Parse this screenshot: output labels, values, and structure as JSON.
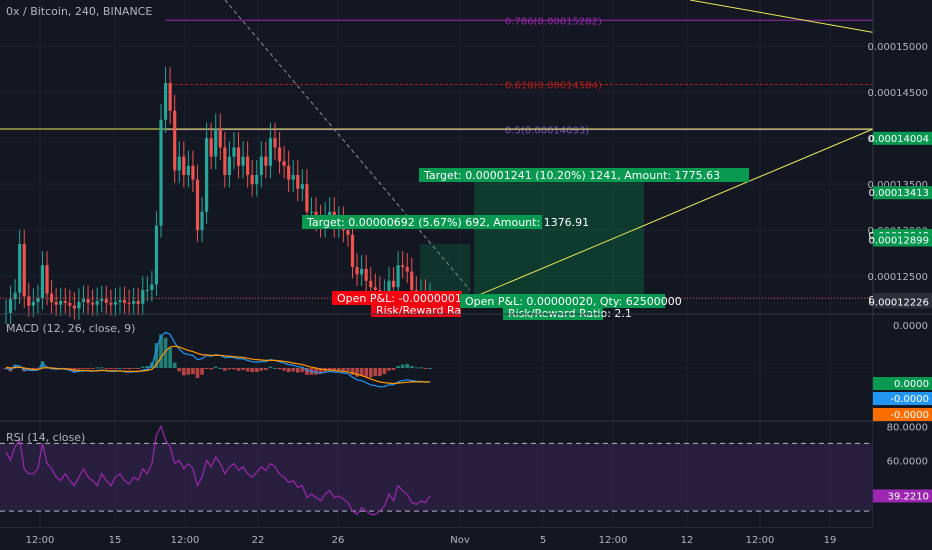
{
  "header": {
    "title": "0x / Bitcoin, 240, BINANCE"
  },
  "colors": {
    "background": "#131722",
    "grid": "#1e222d",
    "up": "#26a69a",
    "down": "#ef5350",
    "fib_0786": "#9c27b0",
    "fib_0618": "#b71c1c",
    "fib_05": "#7e57c2",
    "trend_line": "#e8e856",
    "target_green": "#089950",
    "loss_red": "#f7000f",
    "macd_line": "#2196f3",
    "signal_line": "#ff9800",
    "rsi_line": "#9c27b0",
    "rsi_band": "#3b2554"
  },
  "chart_data": [
    {
      "type": "candlestick",
      "pair": "0x / Bitcoin",
      "interval": "240",
      "exchange": "BINANCE",
      "x_tick_labels": [
        "12:00",
        "15",
        "12:00",
        "22",
        "26",
        "Nov",
        "5",
        "12:00",
        "12",
        "12:00",
        "19"
      ],
      "price_axis_labels": [
        "0.00015000",
        "0.00014500",
        "0.00014000",
        "0.00013500",
        "0.00013000",
        "0.00012500"
      ],
      "price_badges": [
        {
          "value": "0.00014004",
          "color": "#089950"
        },
        {
          "value": "0.00013413",
          "color": "#089950"
        },
        {
          "value": "0.00012948",
          "color": "#089950"
        },
        {
          "value": "0.00012899",
          "color": "#089950"
        },
        {
          "value": "0.00012254",
          "color": "#2a2e39"
        },
        {
          "value": "0.00012226",
          "color": "#2a2e39"
        }
      ],
      "ylim": [
        0.000121,
        0.0001535
      ],
      "closes": [
        0.000121,
        0.0001225,
        0.0001232,
        0.0001285,
        0.0001228,
        0.0001218,
        0.0001222,
        0.0001226,
        0.0001262,
        0.0001231,
        0.0001222,
        0.0001219,
        0.0001223,
        0.0001221,
        0.0001218,
        0.0001215,
        0.0001222,
        0.0001225,
        0.0001221,
        0.0001219,
        0.0001223,
        0.0001225,
        0.0001221,
        0.0001219,
        0.0001222,
        0.0001224,
        0.0001221,
        0.000122,
        0.0001223,
        0.000122,
        0.0001235,
        0.0001235,
        0.0001241,
        0.0001305,
        0.000142,
        0.000146,
        0.000143,
        0.0001365,
        0.000138,
        0.000136,
        0.000137,
        0.0001355,
        0.00013,
        0.000132,
        0.00014,
        0.000138,
        0.000141,
        0.000139,
        0.000136,
        0.000138,
        0.000139,
        0.000137,
        0.000138,
        0.000136,
        0.000135,
        0.000136,
        0.000138,
        0.000137,
        0.00014,
        0.000139,
        0.0001375,
        0.000137,
        0.0001355,
        0.000136,
        0.0001345,
        0.000135,
        0.000132,
        0.000132,
        0.0001312,
        0.0001305,
        0.0001315,
        0.000132,
        0.0001305,
        0.000131,
        0.00013,
        0.0001295,
        0.000126,
        0.0001252,
        0.0001258,
        0.0001245,
        0.0001238,
        0.0001235,
        0.0001228,
        0.0001232,
        0.0001245,
        0.0001238,
        0.0001262,
        0.000126,
        0.0001255,
        0.0001235,
        0.0001228,
        0.0001232,
        0.0001225,
        0.0001228
      ],
      "fibonacci_levels": [
        {
          "label": "0.786(0.00015282)",
          "value": 0.00015282
        },
        {
          "label": "0.618(0.00014584)",
          "value": 0.00014584
        },
        {
          "label": "0.5(0.00014093)",
          "value": 0.00014093
        }
      ],
      "horizontal_line": 0.000141,
      "position_labels": [
        {
          "text": "Target: 0.00001241 (10.20%) 1241, Amount: 1775.63",
          "color": "#089950"
        },
        {
          "text": "Target: 0.00000692 (5.67%) 692, Amount: 1376.91",
          "color": "#089950"
        },
        {
          "text": "Open P&L: -0.00000015",
          "color": "#f7000f"
        },
        {
          "text": "Risk/Reward Ra",
          "color": "#f7000f"
        },
        {
          "text": "Open P&L: 0.00000020, Qty: 62500000",
          "color": "#089950"
        },
        {
          "text": "Risk/Reward Ratio: 2.1",
          "color": "#089950"
        }
      ]
    },
    {
      "type": "line",
      "indicator": "MACD",
      "label": "MACD (12, 26, close, 9)",
      "axis_labels": [
        "0.0000"
      ],
      "badges": [
        {
          "value": "0.0000",
          "color": "#089950"
        },
        {
          "value": "-0.0000",
          "color": "#2196f3"
        },
        {
          "value": "-0.0000",
          "color": "#ff6d00"
        }
      ],
      "ylim": [
        -1,
        1
      ],
      "macd_line": [
        0.0,
        -0.05,
        0.06,
        0.05,
        -0.05,
        -0.05,
        -0.06,
        -0.05,
        0.1,
        0.02,
        -0.02,
        -0.03,
        -0.02,
        -0.03,
        -0.05,
        -0.1,
        -0.08,
        -0.07,
        -0.07,
        -0.08,
        -0.06,
        -0.05,
        -0.07,
        -0.08,
        -0.08,
        -0.07,
        -0.09,
        -0.1,
        -0.09,
        -0.09,
        -0.05,
        -0.03,
        0.05,
        0.45,
        0.75,
        0.85,
        0.8,
        0.6,
        0.45,
        0.35,
        0.32,
        0.3,
        0.2,
        0.22,
        0.3,
        0.28,
        0.32,
        0.3,
        0.25,
        0.26,
        0.25,
        0.22,
        0.22,
        0.18,
        0.15,
        0.14,
        0.15,
        0.15,
        0.2,
        0.18,
        0.15,
        0.12,
        0.08,
        0.07,
        0.03,
        0.02,
        -0.05,
        -0.08,
        -0.1,
        -0.12,
        -0.1,
        -0.08,
        -0.1,
        -0.1,
        -0.12,
        -0.13,
        -0.22,
        -0.28,
        -0.3,
        -0.35,
        -0.4,
        -0.42,
        -0.45,
        -0.44,
        -0.4,
        -0.4,
        -0.33,
        -0.3,
        -0.28,
        -0.3,
        -0.32,
        -0.32,
        -0.34,
        -0.33
      ],
      "signal_line": [
        0.02,
        0.0,
        0.01,
        0.02,
        0.0,
        -0.02,
        -0.03,
        -0.04,
        0.0,
        0.01,
        0.0,
        -0.01,
        -0.02,
        -0.02,
        -0.03,
        -0.05,
        -0.06,
        -0.06,
        -0.06,
        -0.07,
        -0.07,
        -0.06,
        -0.06,
        -0.07,
        -0.07,
        -0.07,
        -0.08,
        -0.08,
        -0.08,
        -0.08,
        -0.07,
        -0.06,
        -0.03,
        0.08,
        0.25,
        0.4,
        0.5,
        0.52,
        0.5,
        0.46,
        0.42,
        0.39,
        0.35,
        0.32,
        0.31,
        0.3,
        0.3,
        0.3,
        0.29,
        0.28,
        0.27,
        0.26,
        0.25,
        0.23,
        0.21,
        0.2,
        0.19,
        0.18,
        0.18,
        0.18,
        0.17,
        0.16,
        0.14,
        0.12,
        0.1,
        0.08,
        0.05,
        0.02,
        0.0,
        -0.03,
        -0.04,
        -0.05,
        -0.06,
        -0.07,
        -0.08,
        -0.09,
        -0.12,
        -0.15,
        -0.18,
        -0.22,
        -0.26,
        -0.3,
        -0.33,
        -0.35,
        -0.36,
        -0.37,
        -0.36,
        -0.35,
        -0.34,
        -0.33,
        -0.33,
        -0.33,
        -0.33,
        -0.33
      ]
    },
    {
      "type": "line",
      "indicator": "RSI",
      "label": "RSI (14, close)",
      "axis_labels": [
        "80.0000",
        "60.0000"
      ],
      "badge": {
        "value": "39.2210",
        "color": "#9c27b0"
      },
      "ylim": [
        20,
        82
      ],
      "upper_band": 70,
      "lower_band": 30,
      "values": [
        65,
        60,
        68,
        72,
        55,
        52,
        52,
        55,
        70,
        58,
        55,
        50,
        48,
        52,
        48,
        45,
        50,
        55,
        50,
        48,
        45,
        52,
        48,
        45,
        50,
        52,
        48,
        46,
        50,
        48,
        55,
        52,
        58,
        75,
        80,
        72,
        68,
        58,
        60,
        55,
        58,
        55,
        45,
        50,
        60,
        56,
        62,
        58,
        52,
        56,
        58,
        54,
        56,
        52,
        50,
        53,
        56,
        54,
        58,
        56,
        52,
        50,
        47,
        48,
        44,
        45,
        38,
        40,
        38,
        36,
        40,
        42,
        38,
        39,
        37,
        35,
        30,
        28,
        32,
        30,
        28,
        28,
        30,
        33,
        40,
        36,
        45,
        42,
        40,
        35,
        34,
        36,
        35,
        39
      ]
    }
  ]
}
